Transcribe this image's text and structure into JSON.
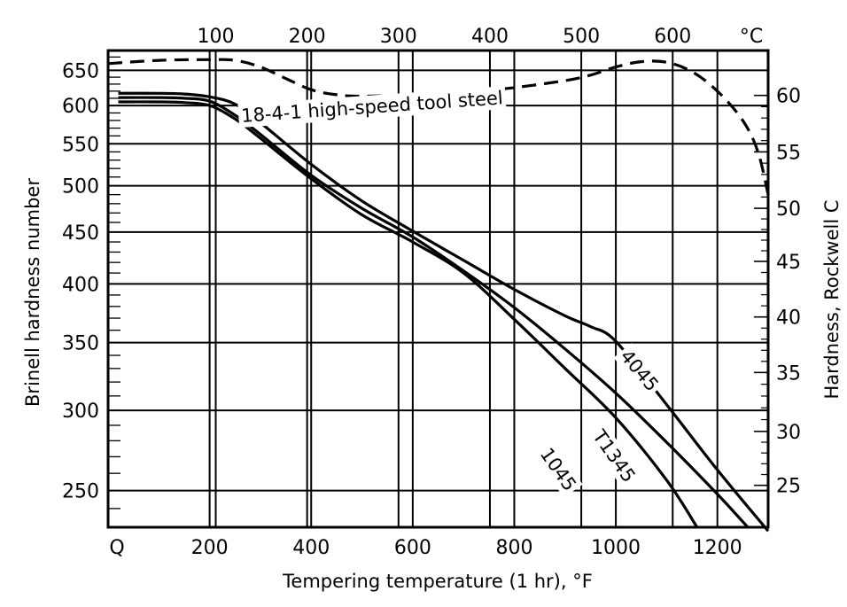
{
  "chart_data": {
    "type": "line",
    "title": "",
    "xlabel": "Tempering temperature (1 hr), °F",
    "ylabel": "Brinell hardness number",
    "ylabel_right": "Hardness, Rockwell C",
    "top_axis_unit": "°C",
    "xlim": [
      0,
      1300
    ],
    "ylim": [
      230,
      680
    ],
    "y_scale": "log",
    "grid": true,
    "x_ticks": [
      0,
      200,
      400,
      600,
      800,
      1000,
      1200
    ],
    "x_tick_labels": [
      "Q",
      "200",
      "400",
      "600",
      "800",
      "1000",
      "1200"
    ],
    "top_ticks_C": [
      100,
      200,
      300,
      400,
      500,
      600
    ],
    "y_ticks": [
      250,
      300,
      350,
      400,
      450,
      500,
      550,
      600,
      650
    ],
    "right_ticks": [
      {
        "label": "25",
        "brinell": 253
      },
      {
        "label": "30",
        "brinell": 286
      },
      {
        "label": "35",
        "brinell": 327
      },
      {
        "label": "40",
        "brinell": 371
      },
      {
        "label": "45",
        "brinell": 421
      },
      {
        "label": "50",
        "brinell": 475
      },
      {
        "label": "55",
        "brinell": 540
      },
      {
        "label": "60",
        "brinell": 614
      }
    ],
    "series": [
      {
        "name": "18-4-1 high-speed tool steel",
        "dashed": true,
        "x": [
          0,
          100,
          200,
          250,
          300,
          350,
          400,
          450,
          500,
          600,
          700,
          800,
          900,
          950,
          1000,
          1050,
          1100,
          1150,
          1200,
          1250,
          1280,
          1300
        ],
        "y": [
          660,
          665,
          666,
          665,
          655,
          638,
          622,
          615,
          613,
          615,
          618,
          625,
          635,
          643,
          655,
          663,
          662,
          648,
          620,
          580,
          540,
          490
        ]
      },
      {
        "name": "4045",
        "x": [
          20,
          100,
          150,
          200,
          250,
          300,
          400,
          500,
          600,
          700,
          800,
          900,
          950,
          1000,
          1100,
          1200,
          1300
        ],
        "y": [
          617,
          617,
          616,
          612,
          602,
          577,
          525,
          483,
          451,
          422,
          395,
          372,
          363,
          351,
          304,
          262,
          228
        ]
      },
      {
        "name": "T1345",
        "x": [
          20,
          100,
          150,
          200,
          250,
          300,
          400,
          500,
          600,
          700,
          800,
          900,
          1000,
          1100,
          1200,
          1260
        ],
        "y": [
          611,
          611,
          610,
          606,
          587,
          562,
          512,
          475,
          445,
          412,
          379,
          345,
          312,
          279,
          248,
          230
        ]
      },
      {
        "name": "1045",
        "x": [
          20,
          100,
          150,
          200,
          250,
          300,
          400,
          500,
          600,
          700,
          800,
          900,
          1000,
          1100,
          1160
        ],
        "y": [
          605,
          605,
          604,
          600,
          582,
          557,
          508,
          468,
          440,
          410,
          369,
          330,
          295,
          256,
          230
        ]
      }
    ],
    "labels": [
      {
        "text": "18-4-1 high-speed tool steel",
        "x": 520,
        "y": 597,
        "rotate": -4
      },
      {
        "text": "4045",
        "x": 1045,
        "y": 328,
        "rotate": 50
      },
      {
        "text": "T1345",
        "x": 995,
        "y": 270,
        "rotate": 55
      },
      {
        "text": "1045",
        "x": 885,
        "y": 262,
        "rotate": 55
      }
    ]
  }
}
